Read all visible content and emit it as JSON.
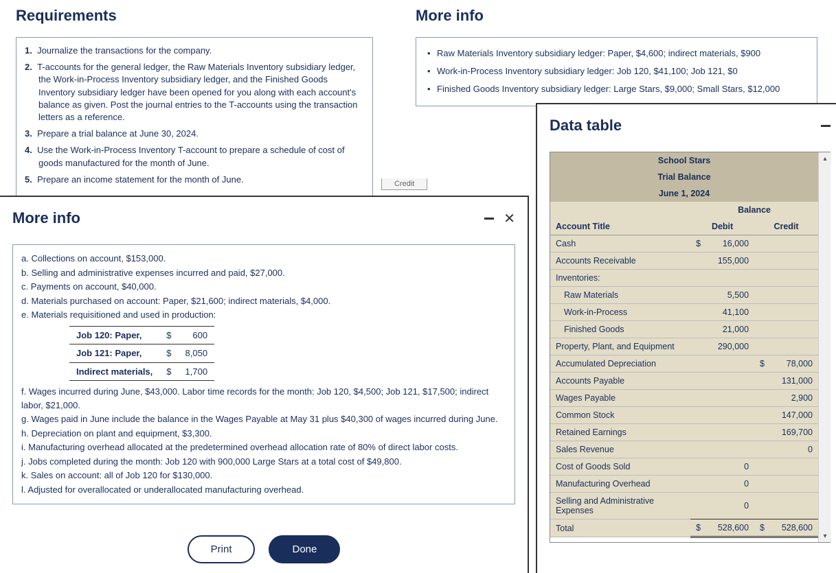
{
  "requirements": {
    "title": "Requirements",
    "items": [
      "Journalize the transactions for the company.",
      "T-accounts for the general ledger, the Raw Materials Inventory subsidiary ledger, the Work-in-Process Inventory subsidiary ledger, and the Finished Goods Inventory subsidiary ledger have been opened for you along with each account's balance as given. Post the journal entries to the T-accounts using the transaction letters as a reference.",
      "Prepare a trial balance at June 30, 2024.",
      "Use the Work-in-Process Inventory T-account to prepare a schedule of cost of goods manufactured for the month of June.",
      "Prepare an income statement for the month of June."
    ]
  },
  "moreInfoTop": {
    "title": "More info",
    "bullets": [
      "Raw Materials Inventory subsidiary ledger: Paper, $4,600; indirect materials, $900",
      "Work-in-Process Inventory subsidiary ledger: Job 120, $41,100; Job 121, $0",
      "Finished Goods Inventory subsidiary ledger: Large Stars, $9,000; Small Stars, $12,000"
    ]
  },
  "creditTab": "Credit",
  "moreInfoBottom": {
    "title": "More info",
    "lines": {
      "a": "a. Collections on account, $153,000.",
      "b": "b. Selling and administrative expenses incurred and paid, $27,000.",
      "c": "c. Payments on account, $40,000.",
      "d": "d. Materials purchased on account: Paper, $21,600; indirect materials, $4,000.",
      "e": "e. Materials requisitioned and used in production:",
      "f": "f. Wages incurred during June, $43,000. Labor time records for the month: Job 120, $4,500; Job 121, $17,500; indirect labor, $21,000.",
      "g": "g. Wages paid in June include the balance in the Wages Payable at May 31 plus $40,300 of wages incurred during June.",
      "h": "h. Depreciation on plant and equipment, $3,300.",
      "i": "i. Manufacturing overhead allocated at the predetermined overhead allocation rate of 80% of direct labor costs.",
      "j": "j. Jobs completed during the month: Job 120 with 900,000 Large Stars at a total cost of $49,800.",
      "k": "k. Sales on account: all of Job 120 for $130,000.",
      "l": "l. Adjusted for overallocated or underallocated manufacturing overhead."
    },
    "materials": [
      {
        "label": "Job 120: Paper,",
        "sym": "$",
        "val": "600"
      },
      {
        "label": "Job 121: Paper,",
        "sym": "$",
        "val": "8,050"
      },
      {
        "label": "Indirect materials,",
        "sym": "$",
        "val": "1,700"
      }
    ],
    "printLabel": "Print",
    "doneLabel": "Done"
  },
  "dataTable": {
    "title": "Data table",
    "company": "School Stars",
    "report": "Trial Balance",
    "date": "June 1, 2024",
    "balanceLabel": "Balance",
    "colAccount": "Account Title",
    "colDebit": "Debit",
    "colCredit": "Credit",
    "rows": [
      {
        "name": "Cash",
        "debit": "16,000",
        "credit": "",
        "dsym": "$",
        "csym": ""
      },
      {
        "name": "Accounts Receivable",
        "debit": "155,000",
        "credit": ""
      },
      {
        "name": "Inventories:",
        "debit": "",
        "credit": ""
      },
      {
        "name": "Raw Materials",
        "debit": "5,500",
        "credit": "",
        "indent": true
      },
      {
        "name": "Work-in-Process",
        "debit": "41,100",
        "credit": "",
        "indent": true
      },
      {
        "name": "Finished Goods",
        "debit": "21,000",
        "credit": "",
        "indent": true
      },
      {
        "name": "Property, Plant, and Equipment",
        "debit": "290,000",
        "credit": ""
      },
      {
        "name": "Accumulated Depreciation",
        "debit": "",
        "credit": "78,000",
        "csym": "$"
      },
      {
        "name": "Accounts Payable",
        "debit": "",
        "credit": "131,000"
      },
      {
        "name": "Wages Payable",
        "debit": "",
        "credit": "2,900"
      },
      {
        "name": "Common Stock",
        "debit": "",
        "credit": "147,000"
      },
      {
        "name": "Retained Earnings",
        "debit": "",
        "credit": "169,700"
      },
      {
        "name": "Sales Revenue",
        "debit": "",
        "credit": "0"
      },
      {
        "name": "Cost of Goods Sold",
        "debit": "0",
        "credit": ""
      },
      {
        "name": "Manufacturing Overhead",
        "debit": "0",
        "credit": ""
      },
      {
        "name": "Selling and Administrative Expenses",
        "debit": "0",
        "credit": "",
        "underline": true
      }
    ],
    "total": {
      "name": "Total",
      "debit": "528,600",
      "credit": "528,600",
      "dsym": "$",
      "csym": "$"
    }
  }
}
